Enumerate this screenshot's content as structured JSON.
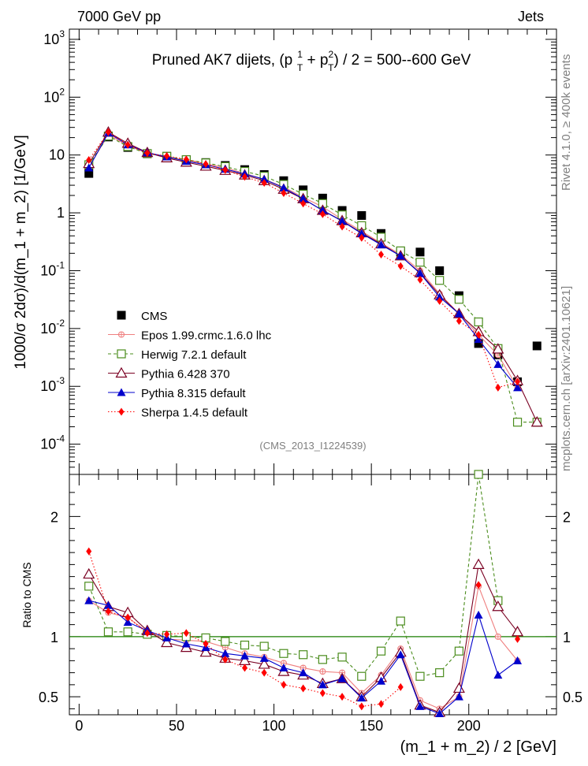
{
  "header": {
    "left": "7000 GeV pp",
    "right": "Jets",
    "side_right": "Rivet 4.1.0, ≥ 400k events",
    "side_right2": "mcplots.cern.ch [arXiv:2401.10621]",
    "analysis": "(CMS_2013_I1224539)"
  },
  "chart_data": [
    {
      "type": "scatter",
      "panel": "main",
      "title": "Pruned AK7 dijets, (p_T^1 + p_T^2) / 2 = 500--600 GeV",
      "title_parts": {
        "pre": "Pruned AK7 dijets, (p",
        "sup1": "1",
        "sub1": "T",
        "mid": " + p",
        "sup2": "2",
        "sub2": "T",
        "post": ") / 2 = 500--600 GeV"
      },
      "ylabel": "1000/σ   2dσ)/d(m_1 + m_2) [1/GeV]",
      "yscale": "log",
      "ylim": [
        3e-05,
        1500
      ],
      "xlim": [
        -5,
        245
      ],
      "yticks": [
        {
          "v": 0.0001,
          "base": "10",
          "exp": "-4"
        },
        {
          "v": 0.001,
          "base": "10",
          "exp": "-3"
        },
        {
          "v": 0.01,
          "base": "10",
          "exp": "-2"
        },
        {
          "v": 0.1,
          "base": "10",
          "exp": "-1"
        },
        {
          "v": 1,
          "base": "1",
          "exp": ""
        },
        {
          "v": 10,
          "base": "10",
          "exp": ""
        },
        {
          "v": 100,
          "base": "10",
          "exp": "2"
        },
        {
          "v": 1000,
          "base": "10",
          "exp": "3"
        }
      ],
      "x": [
        5,
        15,
        25,
        35,
        45,
        55,
        65,
        75,
        85,
        95,
        105,
        115,
        125,
        135,
        145,
        155,
        165,
        175,
        185,
        195,
        205,
        215,
        225,
        235
      ],
      "series": [
        {
          "name": "CMS",
          "color": "#000000",
          "values": [
            4.8,
            20.5,
            13.5,
            10.5,
            9.5,
            8.3,
            7.4,
            6.6,
            5.6,
            4.6,
            3.6,
            2.5,
            1.8,
            1.1,
            0.9,
            0.44,
            0.21,
            0.21,
            0.1,
            0.037,
            0.0055,
            0.0035,
            0.0012,
            0.005
          ]
        },
        {
          "name": "Epos 1.99.crmc.1.6.0 lhc",
          "color": "#ef7f7f",
          "values": [
            6.2,
            22.5,
            14.5,
            10.8,
            9.2,
            8.1,
            7.1,
            6.0,
            4.8,
            3.8,
            2.8,
            1.85,
            1.27,
            0.77,
            0.48,
            0.3,
            0.19,
            0.1,
            0.04,
            0.018,
            0.0078,
            0.0035,
            0.00095,
            null
          ]
        },
        {
          "name": "Herwig 7.2.1 default",
          "color": "#4a8c1c",
          "values": [
            6.8,
            21.3,
            14.0,
            10.6,
            9.5,
            8.3,
            7.3,
            6.3,
            5.2,
            4.3,
            3.1,
            2.1,
            1.45,
            0.92,
            0.6,
            0.38,
            0.22,
            0.14,
            0.068,
            0.032,
            0.013,
            0.0045,
            0.00024,
            0.00024
          ]
        },
        {
          "name": "Pythia 6.428 370",
          "color": "#7a0022",
          "values": [
            7.1,
            24.8,
            15.9,
            11.0,
            8.9,
            7.5,
            6.4,
            5.4,
            4.5,
            3.6,
            2.55,
            1.75,
            1.1,
            0.73,
            0.45,
            0.29,
            0.18,
            0.092,
            0.038,
            0.018,
            0.0088,
            0.0044,
            0.00125,
            0.00024
          ]
        },
        {
          "name": "Pythia 8.315 default",
          "color": "#0000cc",
          "values": [
            6.0,
            24.0,
            15.0,
            11.0,
            9.3,
            7.8,
            6.8,
            5.7,
            4.7,
            3.8,
            2.7,
            1.75,
            1.1,
            0.72,
            0.44,
            0.28,
            0.18,
            0.09,
            0.035,
            0.018,
            0.0065,
            0.0024,
            0.00095,
            null
          ]
        },
        {
          "name": "Sherpa 1.4.5 default",
          "color": "#ff0000",
          "values": [
            8.2,
            24.8,
            15.0,
            10.8,
            9.6,
            8.4,
            7.0,
            5.5,
            4.2,
            3.3,
            2.2,
            1.45,
            0.95,
            0.58,
            0.37,
            0.19,
            0.12,
            0.07,
            0.03,
            0.0135,
            0.0078,
            0.00095,
            0.0012,
            null
          ]
        }
      ]
    },
    {
      "type": "line",
      "panel": "ratio",
      "ylabel": "Ratio to CMS",
      "xlabel": "(m_1 + m_2) / 2 [GeV]",
      "ylim": [
        0.35,
        2.35
      ],
      "xlim": [
        -5,
        245
      ],
      "yticks": [
        0.5,
        1,
        2
      ],
      "xticks": [
        0,
        50,
        100,
        150,
        200
      ],
      "x": [
        5,
        15,
        25,
        35,
        45,
        55,
        65,
        75,
        85,
        95,
        105,
        115,
        125,
        135,
        145,
        155,
        165,
        175,
        185,
        195,
        205,
        215,
        225
      ],
      "series": [
        {
          "name": "Epos 1.99.crmc.1.6.0 lhc",
          "color": "#ef7f7f",
          "values": [
            1.3,
            1.2,
            1.16,
            1.04,
            0.98,
            0.97,
            0.96,
            0.91,
            0.86,
            0.83,
            0.78,
            0.74,
            0.71,
            0.7,
            0.53,
            0.68,
            0.9,
            0.47,
            0.4,
            0.5,
            1.42,
            1.0,
            0.8
          ]
        },
        {
          "name": "Herwig 7.2.1 default",
          "color": "#4a8c1c",
          "values": [
            1.42,
            1.04,
            1.04,
            1.02,
            1.01,
            1.0,
            0.99,
            0.96,
            0.93,
            0.92,
            0.86,
            0.85,
            0.81,
            0.83,
            0.67,
            0.88,
            1.13,
            0.67,
            0.7,
            0.88,
            2.35,
            1.3,
            null
          ]
        },
        {
          "name": "Pythia 6.428 370",
          "color": "#7a0022",
          "values": [
            1.52,
            1.25,
            1.2,
            1.05,
            0.95,
            0.91,
            0.87,
            0.82,
            0.8,
            0.77,
            0.71,
            0.68,
            0.61,
            0.65,
            0.5,
            0.66,
            0.87,
            0.43,
            0.37,
            0.57,
            1.6,
            1.25,
            1.04
          ]
        },
        {
          "name": "Pythia 8.315 default",
          "color": "#0000cc",
          "values": [
            1.3,
            1.26,
            1.12,
            1.05,
            0.99,
            0.94,
            0.91,
            0.86,
            0.84,
            0.82,
            0.74,
            0.7,
            0.6,
            0.65,
            0.49,
            0.63,
            0.85,
            0.42,
            0.36,
            0.5,
            1.18,
            0.68,
            0.8
          ]
        },
        {
          "name": "Sherpa 1.4.5 default",
          "color": "#ff0000",
          "values": [
            1.71,
            1.21,
            1.16,
            1.03,
            1.02,
            1.03,
            0.94,
            0.81,
            0.74,
            0.7,
            0.6,
            0.57,
            0.53,
            0.5,
            0.42,
            0.44,
            0.58,
            null,
            null,
            null,
            1.43,
            null,
            0.98
          ]
        }
      ]
    }
  ]
}
